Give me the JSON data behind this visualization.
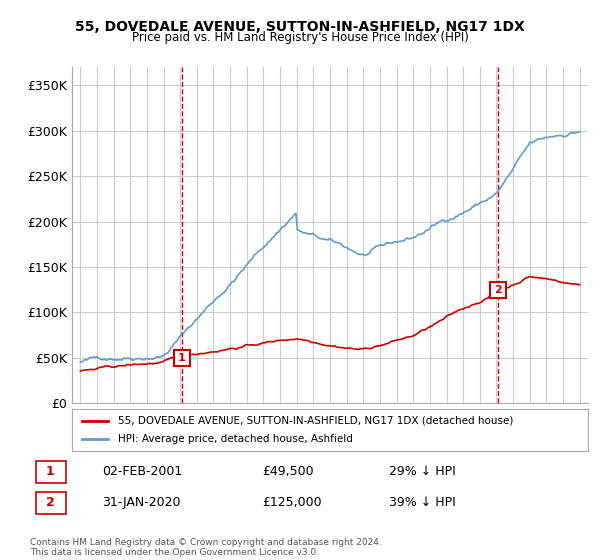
{
  "title": "55, DOVEDALE AVENUE, SUTTON-IN-ASHFIELD, NG17 1DX",
  "subtitle": "Price paid vs. HM Land Registry's House Price Index (HPI)",
  "legend_line1": "55, DOVEDALE AVENUE, SUTTON-IN-ASHFIELD, NG17 1DX (detached house)",
  "legend_line2": "HPI: Average price, detached house, Ashfield",
  "annotation1_label": "1",
  "annotation1_date": "02-FEB-2001",
  "annotation1_price": "£49,500",
  "annotation1_hpi": "29% ↓ HPI",
  "annotation1_year": 2001.08,
  "annotation1_value": 49500,
  "annotation2_label": "2",
  "annotation2_date": "31-JAN-2020",
  "annotation2_price": "£125,000",
  "annotation2_hpi": "39% ↓ HPI",
  "annotation2_year": 2020.08,
  "annotation2_value": 125000,
  "ylabel_ticks": [
    "£0",
    "£50K",
    "£100K",
    "£150K",
    "£200K",
    "£250K",
    "£300K",
    "£350K"
  ],
  "ytick_values": [
    0,
    50000,
    100000,
    150000,
    200000,
    250000,
    300000,
    350000
  ],
  "ylim": [
    0,
    370000
  ],
  "xlim_start": 1994.5,
  "xlim_end": 2025.5,
  "copyright_text": "Contains HM Land Registry data © Crown copyright and database right 2024.\nThis data is licensed under the Open Government Licence v3.0.",
  "red_color": "#cc0000",
  "blue_color": "#6699cc",
  "dashed_color": "#cc0000",
  "background_color": "#ffffff",
  "grid_color": "#cccccc"
}
